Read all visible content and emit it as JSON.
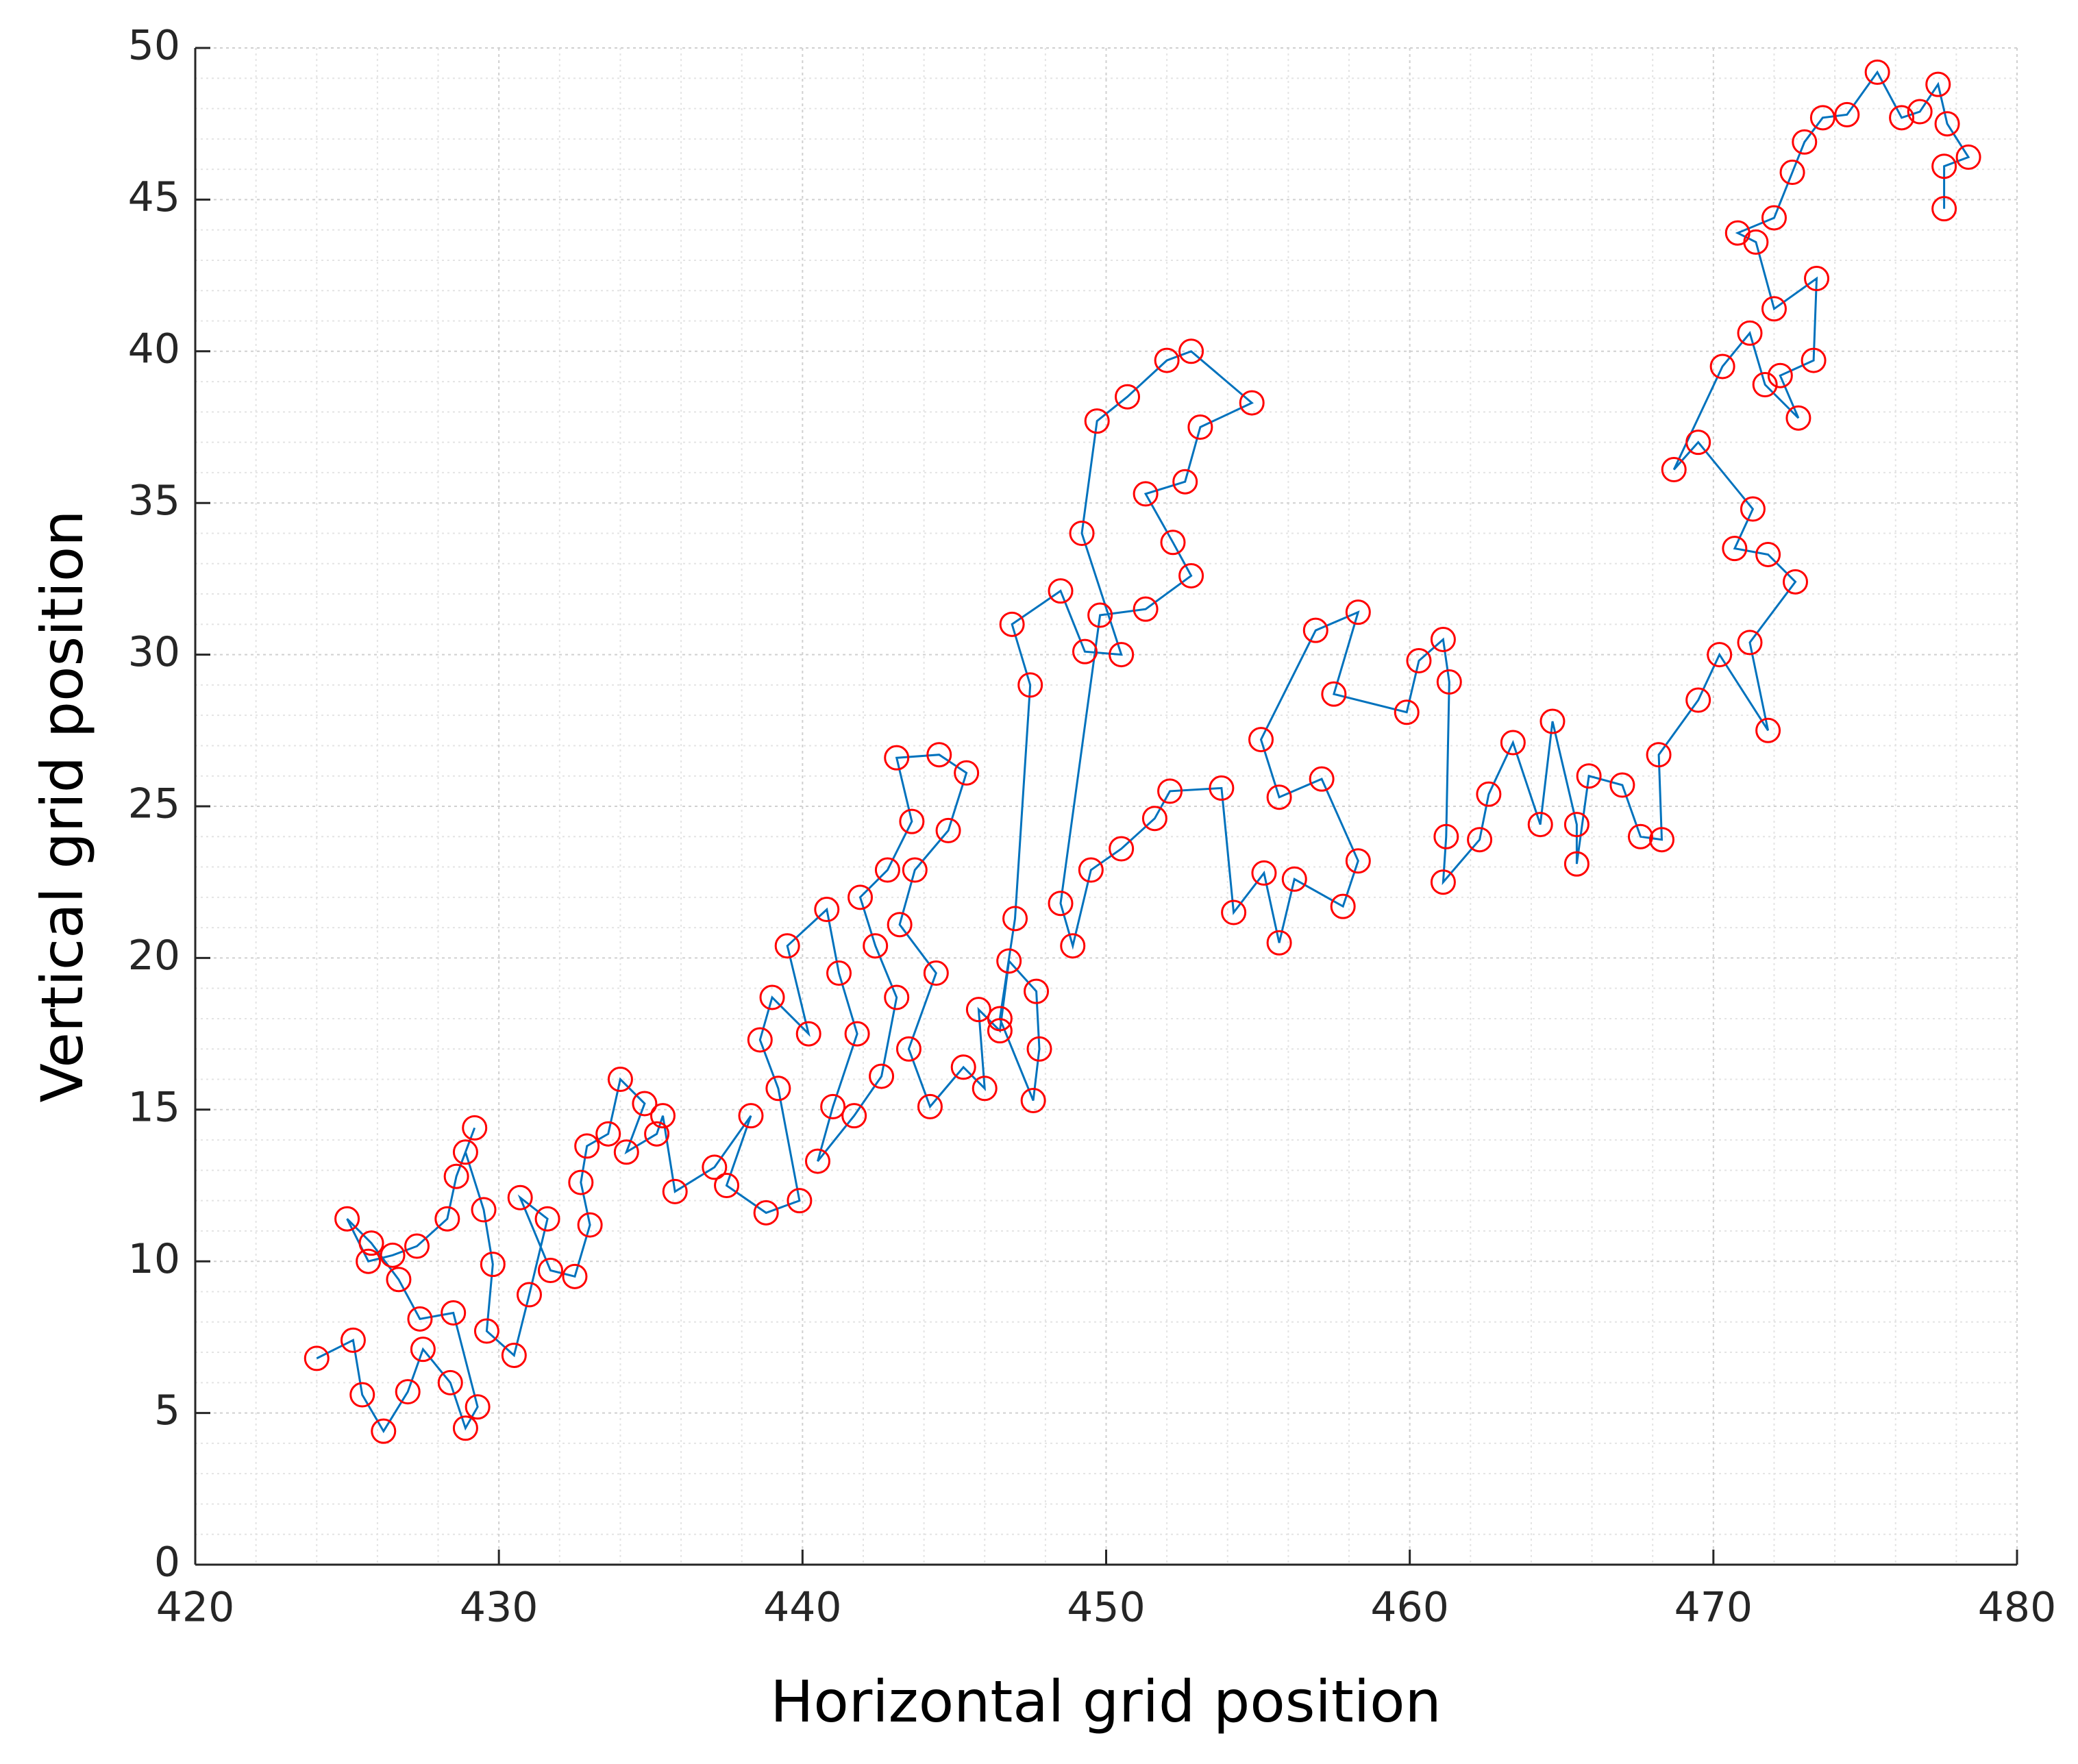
{
  "chart_data": {
    "type": "scatter",
    "x_label": "Horizontal grid position",
    "y_label": "Vertical grid position",
    "x": [
      424,
      425.2,
      425.5,
      426.2,
      427,
      427.5,
      428.4,
      428.9,
      429.3,
      428.5,
      427.4,
      426.7,
      425.8,
      425,
      425.7,
      426.5,
      427.3,
      428.3,
      428.6,
      429.2,
      428.9,
      429.5,
      429.8,
      429.6,
      430.5,
      431,
      431.6,
      430.7,
      431.7,
      432.5,
      433,
      432.7,
      432.9,
      433.6,
      434,
      434.8,
      434.2,
      435.2,
      435.4,
      435.8,
      437.1,
      438.3,
      437.5,
      438.8,
      439.9,
      439.2,
      438.6,
      439,
      440.2,
      439.5,
      440.8,
      441.2,
      441.8,
      441,
      440.5,
      441.7,
      442.6,
      443.1,
      442.4,
      441.9,
      442.8,
      443.6,
      443.1,
      444.5,
      445.4,
      444.8,
      443.7,
      443.2,
      444.4,
      443.5,
      444.2,
      445.3,
      446,
      445.8,
      446.5,
      446.8,
      447.7,
      447.8,
      447.6,
      446.5,
      447,
      447.5,
      446.9,
      448.5,
      449.3,
      450.5,
      449.2,
      449.7,
      450.7,
      452,
      452.8,
      454.8,
      453.1,
      452.6,
      451.3,
      452.2,
      452.8,
      451.3,
      449.8,
      448.5,
      448.9,
      449.5,
      450.5,
      451.6,
      452.1,
      453.8,
      454.2,
      455.2,
      455.7,
      456.2,
      457.8,
      458.3,
      457.1,
      455.7,
      455.1,
      456.9,
      458.3,
      457.5,
      459.9,
      460.3,
      461.1,
      461.3,
      461.2,
      461.1,
      462.3,
      462.6,
      463.4,
      464.3,
      464.7,
      465.5,
      465.5,
      465.9,
      467,
      467.6,
      468.3,
      468.2,
      469.5,
      470.2,
      471.8,
      471.2,
      472.7,
      471.8,
      470.7,
      471.3,
      469.5,
      468.7,
      470.3,
      471.2,
      471.7,
      472.8,
      472.2,
      473.3,
      473.4,
      472,
      471.4,
      470.8,
      472,
      472.6,
      473,
      473.6,
      474.4,
      475.4,
      476.2,
      476.8,
      477.4,
      477.7,
      478.4,
      477.6,
      477.6
    ],
    "series": [
      {
        "color": "#0072bd",
        "marker_color": "#ff0000",
        "values": [
          6.8,
          7.4,
          5.6,
          4.4,
          5.7,
          7.1,
          6.0,
          4.5,
          5.2,
          8.3,
          8.1,
          9.4,
          10.6,
          11.4,
          10.0,
          10.2,
          10.5,
          11.4,
          12.8,
          14.4,
          13.6,
          11.7,
          9.9,
          7.7,
          6.9,
          8.9,
          11.4,
          12.1,
          9.7,
          9.5,
          11.2,
          12.6,
          13.8,
          14.2,
          16.0,
          15.2,
          13.6,
          14.2,
          14.8,
          12.3,
          13.1,
          14.8,
          12.5,
          11.6,
          12.0,
          15.7,
          17.3,
          18.7,
          17.5,
          20.4,
          21.6,
          19.5,
          17.5,
          15.1,
          13.3,
          14.8,
          16.1,
          18.7,
          20.4,
          22.0,
          22.9,
          24.5,
          26.6,
          26.7,
          26.1,
          24.2,
          22.9,
          21.1,
          19.5,
          17.0,
          15.1,
          16.4,
          15.7,
          18.3,
          17.6,
          19.9,
          18.9,
          17.0,
          15.3,
          18.0,
          21.3,
          29.0,
          31.0,
          32.1,
          30.1,
          30.0,
          34.0,
          37.7,
          38.5,
          39.7,
          40.0,
          38.3,
          37.5,
          35.7,
          35.3,
          33.7,
          32.6,
          31.5,
          31.3,
          21.8,
          20.4,
          22.9,
          23.6,
          24.6,
          25.5,
          25.6,
          21.5,
          22.8,
          20.5,
          22.6,
          21.7,
          23.2,
          25.9,
          25.3,
          27.2,
          30.8,
          31.4,
          28.7,
          28.1,
          29.8,
          30.5,
          29.1,
          24.0,
          22.5,
          23.9,
          25.4,
          27.1,
          24.4,
          27.8,
          24.4,
          23.1,
          26.0,
          25.7,
          24.0,
          23.9,
          26.7,
          28.5,
          30.0,
          27.5,
          30.4,
          32.4,
          33.3,
          33.5,
          34.8,
          37.0,
          36.1,
          39.5,
          40.6,
          38.9,
          37.8,
          39.2,
          39.7,
          42.4,
          41.4,
          43.6,
          43.9,
          44.4,
          45.9,
          46.9,
          47.7,
          47.8,
          49.2,
          47.7,
          47.9,
          48.8,
          47.5,
          46.4,
          46.1,
          44.7
        ]
      }
    ],
    "xlim": [
      420,
      480
    ],
    "xticks": [
      420,
      430,
      440,
      450,
      460,
      470,
      480
    ],
    "ylim": [
      0,
      50
    ],
    "yticks": [
      0,
      5,
      10,
      15,
      20,
      25,
      30,
      35,
      40,
      45,
      50
    ],
    "grid": true,
    "minor_grid": true,
    "minor_divisions_x": 5,
    "minor_divisions_y": 5
  }
}
